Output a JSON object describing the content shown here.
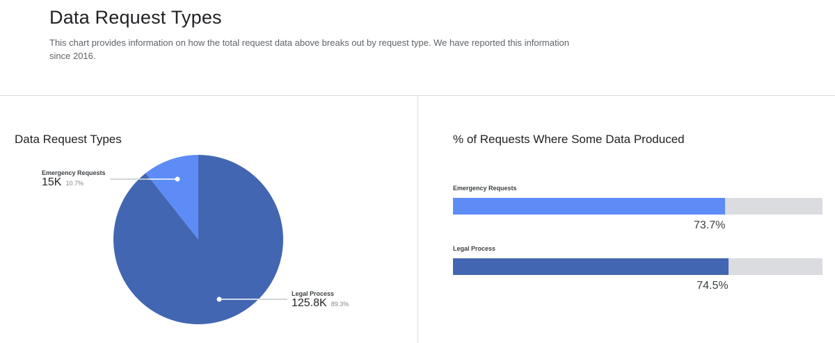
{
  "header": {
    "title": "Data Request Types",
    "description": "This chart provides information on how the total request data above breaks out by request type. We have reported this information since 2016."
  },
  "colors": {
    "emergency": "#5e8cf7",
    "legal": "#4266b1",
    "track": "#dadce0"
  },
  "chart_data": [
    {
      "type": "pie",
      "title": "Data Request Types",
      "slices": [
        {
          "label": "Emergency Requests",
          "value_label": "15K",
          "value": 15000,
          "percent_label": "10.7%",
          "percent": 10.7
        },
        {
          "label": "Legal Process",
          "value_label": "125.8K",
          "value": 125800,
          "percent_label": "89.3%",
          "percent": 89.3
        }
      ]
    },
    {
      "type": "bar",
      "orientation": "horizontal",
      "title": "% of Requests Where Some Data Produced",
      "categories": [
        "Emergency Requests",
        "Legal Process"
      ],
      "values": [
        73.7,
        74.5
      ],
      "value_labels": [
        "73.7%",
        "74.5%"
      ],
      "xlim": [
        0,
        100
      ]
    }
  ]
}
